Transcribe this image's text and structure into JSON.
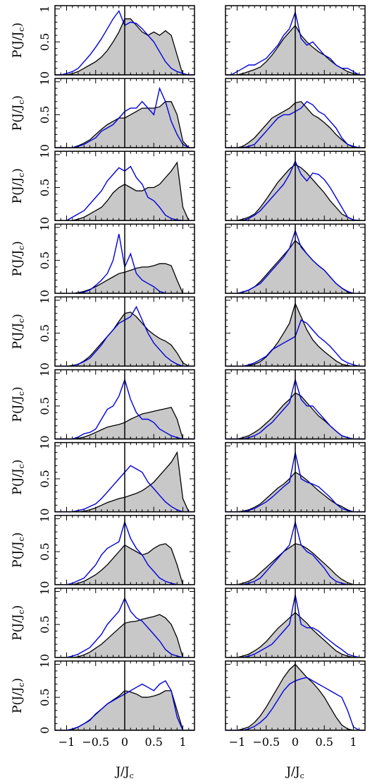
{
  "figure": {
    "ylabel_main": "P(J/J",
    "ylabel_sub": "c",
    "ylabel_close": ")",
    "xlabel_main": "J/J",
    "xlabel_sub": "c"
  },
  "chart_data": {
    "type": "area",
    "layout": "10 rows x 2 columns of small-multiple histograms",
    "grid": false,
    "xlim": [
      -1.2,
      1.2
    ],
    "ylim": [
      0,
      1.05
    ],
    "x_ticks": [
      -1,
      -0.5,
      0,
      0.5,
      1
    ],
    "x_tick_labels": [
      "−1",
      "−0.5",
      "0",
      "0.5",
      "1"
    ],
    "y_ticks": [
      0,
      0.5,
      1
    ],
    "y_tick_labels": [
      "0",
      "0.5",
      "1"
    ],
    "vertical_reference_line_x": 0,
    "series_styles": {
      "filled": {
        "fill": "#c8c8c8",
        "stroke": "#000000"
      },
      "line": {
        "stroke": "#0000dd"
      }
    },
    "x_sample": [
      -1.2,
      -1.1,
      -1.0,
      -0.9,
      -0.8,
      -0.7,
      -0.6,
      -0.5,
      -0.4,
      -0.3,
      -0.2,
      -0.1,
      0.0,
      0.1,
      0.2,
      0.3,
      0.4,
      0.5,
      0.6,
      0.7,
      0.8,
      0.9,
      1.0,
      1.1,
      1.2
    ],
    "panels": [
      {
        "row": 1,
        "col": 1,
        "filled": [
          0,
          0,
          0,
          0.02,
          0.05,
          0.1,
          0.15,
          0.2,
          0.27,
          0.37,
          0.5,
          0.65,
          0.85,
          0.85,
          0.75,
          0.65,
          0.6,
          0.65,
          0.6,
          0.67,
          0.6,
          0.3,
          0,
          0,
          0
        ],
        "line": [
          0,
          0,
          0.02,
          0.05,
          0.1,
          0.2,
          0.3,
          0.42,
          0.55,
          0.7,
          0.85,
          0.97,
          0.75,
          0.8,
          0.78,
          0.7,
          0.6,
          0.5,
          0.35,
          0.2,
          0.1,
          0.05,
          0.02,
          0,
          0
        ]
      },
      {
        "row": 1,
        "col": 2,
        "filled": [
          0,
          0,
          0,
          0.02,
          0.05,
          0.08,
          0.12,
          0.2,
          0.3,
          0.42,
          0.55,
          0.65,
          0.75,
          0.6,
          0.5,
          0.42,
          0.35,
          0.3,
          0.22,
          0.15,
          0.1,
          0.05,
          0.02,
          0,
          0
        ],
        "line": [
          0,
          0,
          0.05,
          0.1,
          0.15,
          0.15,
          0.2,
          0.25,
          0.35,
          0.45,
          0.6,
          0.7,
          0.95,
          0.55,
          0.45,
          0.5,
          0.4,
          0.3,
          0.25,
          0.15,
          0.1,
          0.1,
          0.05,
          0,
          0
        ]
      },
      {
        "row": 2,
        "col": 1,
        "filled": [
          0,
          0,
          0,
          0,
          0.03,
          0.07,
          0.12,
          0.2,
          0.28,
          0.35,
          0.4,
          0.45,
          0.45,
          0.5,
          0.55,
          0.6,
          0.6,
          0.6,
          0.62,
          0.7,
          0.7,
          0.5,
          0.1,
          0,
          0
        ],
        "line": [
          0,
          0,
          0,
          0,
          0.02,
          0.05,
          0.1,
          0.15,
          0.25,
          0.3,
          0.35,
          0.45,
          0.55,
          0.6,
          0.6,
          0.7,
          0.6,
          0.5,
          0.9,
          0.7,
          0.4,
          0.2,
          0.05,
          0,
          0
        ]
      },
      {
        "row": 2,
        "col": 2,
        "filled": [
          0,
          0,
          0,
          0.02,
          0.08,
          0.15,
          0.25,
          0.35,
          0.45,
          0.5,
          0.55,
          0.6,
          0.68,
          0.7,
          0.6,
          0.5,
          0.45,
          0.38,
          0.3,
          0.2,
          0.12,
          0.05,
          0.01,
          0,
          0
        ],
        "line": [
          0,
          0,
          0,
          0,
          0.02,
          0.05,
          0.15,
          0.25,
          0.35,
          0.45,
          0.5,
          0.5,
          0.55,
          0.6,
          0.7,
          0.65,
          0.55,
          0.5,
          0.4,
          0.3,
          0.15,
          0.05,
          0.02,
          0,
          0
        ]
      },
      {
        "row": 3,
        "col": 1,
        "filled": [
          0,
          0,
          0,
          0,
          0.02,
          0.05,
          0.1,
          0.15,
          0.2,
          0.3,
          0.42,
          0.5,
          0.55,
          0.5,
          0.45,
          0.45,
          0.5,
          0.5,
          0.55,
          0.65,
          0.75,
          0.88,
          0.2,
          0,
          0
        ],
        "line": [
          0,
          0,
          0,
          0.05,
          0.1,
          0.15,
          0.25,
          0.35,
          0.45,
          0.6,
          0.7,
          0.8,
          0.75,
          0.82,
          0.65,
          0.55,
          0.35,
          0.3,
          0.2,
          0.08,
          0.03,
          0.01,
          0,
          0,
          0
        ]
      },
      {
        "row": 3,
        "col": 2,
        "filled": [
          0,
          0,
          0,
          0.02,
          0.05,
          0.1,
          0.2,
          0.32,
          0.45,
          0.58,
          0.68,
          0.78,
          0.85,
          0.8,
          0.72,
          0.62,
          0.52,
          0.42,
          0.3,
          0.2,
          0.1,
          0.05,
          0.01,
          0,
          0
        ],
        "line": [
          0,
          0,
          0,
          0,
          0.03,
          0.08,
          0.15,
          0.25,
          0.35,
          0.45,
          0.55,
          0.7,
          0.9,
          0.7,
          0.6,
          0.72,
          0.7,
          0.62,
          0.5,
          0.35,
          0.2,
          0.05,
          0.01,
          0,
          0
        ]
      },
      {
        "row": 4,
        "col": 1,
        "filled": [
          0,
          0,
          0,
          0,
          0.01,
          0.03,
          0.06,
          0.1,
          0.15,
          0.2,
          0.25,
          0.3,
          0.32,
          0.35,
          0.38,
          0.4,
          0.4,
          0.42,
          0.45,
          0.45,
          0.42,
          0.2,
          0,
          0,
          0
        ],
        "line": [
          0,
          0,
          0,
          0,
          0,
          0.02,
          0.05,
          0.12,
          0.2,
          0.3,
          0.5,
          0.9,
          0.4,
          0.6,
          0.3,
          0.2,
          0.15,
          0.1,
          0.03,
          0,
          0,
          0,
          0,
          0,
          0
        ]
      },
      {
        "row": 4,
        "col": 2,
        "filled": [
          0,
          0,
          0,
          0.02,
          0.05,
          0.1,
          0.18,
          0.28,
          0.38,
          0.48,
          0.58,
          0.68,
          0.8,
          0.72,
          0.6,
          0.5,
          0.42,
          0.35,
          0.25,
          0.15,
          0.08,
          0.02,
          0,
          0,
          0
        ],
        "line": [
          0,
          0,
          0,
          0.02,
          0.05,
          0.1,
          0.15,
          0.25,
          0.35,
          0.45,
          0.55,
          0.68,
          0.95,
          0.7,
          0.6,
          0.5,
          0.42,
          0.35,
          0.25,
          0.15,
          0.08,
          0.03,
          0,
          0,
          0
        ]
      },
      {
        "row": 5,
        "col": 1,
        "filled": [
          0,
          0,
          0,
          0.01,
          0.03,
          0.08,
          0.15,
          0.25,
          0.35,
          0.45,
          0.55,
          0.68,
          0.8,
          0.82,
          0.75,
          0.65,
          0.55,
          0.48,
          0.42,
          0.38,
          0.32,
          0.2,
          0.05,
          0,
          0
        ],
        "line": [
          0,
          0,
          0,
          0,
          0.03,
          0.07,
          0.12,
          0.22,
          0.32,
          0.45,
          0.55,
          0.65,
          0.7,
          0.75,
          0.9,
          0.7,
          0.5,
          0.35,
          0.25,
          0.15,
          0.08,
          0.03,
          0,
          0,
          0
        ]
      },
      {
        "row": 5,
        "col": 2,
        "filled": [
          0,
          0,
          0,
          0,
          0.01,
          0.03,
          0.07,
          0.14,
          0.24,
          0.36,
          0.5,
          0.65,
          0.95,
          0.75,
          0.55,
          0.4,
          0.3,
          0.22,
          0.15,
          0.08,
          0.03,
          0.01,
          0,
          0,
          0
        ],
        "line": [
          0,
          0,
          0,
          0,
          0.02,
          0.05,
          0.1,
          0.15,
          0.25,
          0.3,
          0.35,
          0.4,
          0.45,
          0.7,
          0.65,
          0.55,
          0.45,
          0.38,
          0.3,
          0.2,
          0.1,
          0.05,
          0.02,
          0,
          0
        ]
      },
      {
        "row": 6,
        "col": 1,
        "filled": [
          0,
          0,
          0,
          0,
          0.01,
          0.03,
          0.06,
          0.1,
          0.14,
          0.18,
          0.2,
          0.22,
          0.25,
          0.3,
          0.34,
          0.38,
          0.4,
          0.42,
          0.44,
          0.46,
          0.48,
          0.3,
          0,
          0,
          0
        ],
        "line": [
          0,
          0,
          0,
          0,
          0.03,
          0.08,
          0.1,
          0.15,
          0.3,
          0.45,
          0.5,
          0.65,
          0.9,
          0.6,
          0.4,
          0.3,
          0.3,
          0.25,
          0.15,
          0.1,
          0.05,
          0.02,
          0,
          0,
          0
        ]
      },
      {
        "row": 6,
        "col": 2,
        "filled": [
          0,
          0,
          0,
          0.02,
          0.05,
          0.1,
          0.16,
          0.24,
          0.32,
          0.42,
          0.52,
          0.6,
          0.7,
          0.65,
          0.55,
          0.45,
          0.35,
          0.28,
          0.2,
          0.12,
          0.05,
          0.02,
          0,
          0,
          0
        ],
        "line": [
          0,
          0,
          0,
          0,
          0.02,
          0.05,
          0.1,
          0.18,
          0.25,
          0.35,
          0.45,
          0.55,
          0.9,
          0.6,
          0.5,
          0.5,
          0.4,
          0.3,
          0.2,
          0.12,
          0.05,
          0.02,
          0,
          0,
          0
        ]
      },
      {
        "row": 7,
        "col": 1,
        "filled": [
          0,
          0,
          0,
          0,
          0,
          0.01,
          0.03,
          0.06,
          0.1,
          0.14,
          0.17,
          0.2,
          0.22,
          0.25,
          0.28,
          0.32,
          0.38,
          0.45,
          0.55,
          0.65,
          0.75,
          0.9,
          0.2,
          0,
          0
        ],
        "line": [
          0,
          0,
          0,
          0,
          0.02,
          0.04,
          0.08,
          0.12,
          0.2,
          0.3,
          0.4,
          0.5,
          0.6,
          0.7,
          0.65,
          0.6,
          0.45,
          0.35,
          0.25,
          0.15,
          0.08,
          0.03,
          0,
          0,
          0
        ]
      },
      {
        "row": 7,
        "col": 2,
        "filled": [
          0,
          0,
          0,
          0.01,
          0.03,
          0.07,
          0.12,
          0.2,
          0.28,
          0.36,
          0.42,
          0.5,
          0.6,
          0.55,
          0.48,
          0.4,
          0.32,
          0.25,
          0.18,
          0.12,
          0.08,
          0.03,
          0,
          0,
          0
        ],
        "line": [
          0,
          0,
          0,
          0,
          0.02,
          0.05,
          0.1,
          0.15,
          0.22,
          0.3,
          0.38,
          0.45,
          0.9,
          0.5,
          0.45,
          0.42,
          0.38,
          0.3,
          0.22,
          0.12,
          0.05,
          0.02,
          0,
          0,
          0
        ]
      },
      {
        "row": 8,
        "col": 1,
        "filled": [
          0,
          0,
          0,
          0,
          0.02,
          0.05,
          0.1,
          0.15,
          0.22,
          0.3,
          0.4,
          0.5,
          0.6,
          0.55,
          0.5,
          0.45,
          0.48,
          0.55,
          0.6,
          0.62,
          0.55,
          0.3,
          0,
          0,
          0
        ],
        "line": [
          0,
          0,
          0,
          0.02,
          0.06,
          0.1,
          0.2,
          0.3,
          0.45,
          0.55,
          0.6,
          0.65,
          0.95,
          0.7,
          0.55,
          0.45,
          0.3,
          0.2,
          0.1,
          0.05,
          0.02,
          0,
          0,
          0,
          0
        ]
      },
      {
        "row": 8,
        "col": 2,
        "filled": [
          0,
          0,
          0,
          0.02,
          0.05,
          0.1,
          0.18,
          0.26,
          0.34,
          0.42,
          0.5,
          0.56,
          0.62,
          0.6,
          0.55,
          0.48,
          0.4,
          0.32,
          0.24,
          0.15,
          0.08,
          0.03,
          0,
          0,
          0
        ],
        "line": [
          0,
          0,
          0,
          0,
          0.02,
          0.05,
          0.1,
          0.2,
          0.3,
          0.4,
          0.5,
          0.6,
          0.95,
          0.6,
          0.5,
          0.45,
          0.35,
          0.25,
          0.12,
          0.05,
          0.02,
          0,
          0,
          0,
          0
        ]
      },
      {
        "row": 9,
        "col": 1,
        "filled": [
          0,
          0,
          0,
          0,
          0.01,
          0.04,
          0.08,
          0.14,
          0.2,
          0.28,
          0.36,
          0.44,
          0.52,
          0.54,
          0.55,
          0.58,
          0.6,
          0.62,
          0.65,
          0.6,
          0.5,
          0.3,
          0,
          0,
          0
        ],
        "line": [
          0,
          0,
          0,
          0.02,
          0.05,
          0.1,
          0.15,
          0.25,
          0.35,
          0.5,
          0.6,
          0.7,
          0.9,
          0.7,
          0.6,
          0.55,
          0.45,
          0.35,
          0.25,
          0.12,
          0.05,
          0.02,
          0,
          0,
          0
        ]
      },
      {
        "row": 9,
        "col": 2,
        "filled": [
          0,
          0,
          0,
          0.02,
          0.05,
          0.1,
          0.16,
          0.24,
          0.34,
          0.44,
          0.52,
          0.6,
          0.68,
          0.6,
          0.52,
          0.42,
          0.34,
          0.26,
          0.18,
          0.1,
          0.05,
          0.02,
          0,
          0,
          0
        ],
        "line": [
          0,
          0,
          0,
          0,
          0.02,
          0.05,
          0.1,
          0.15,
          0.2,
          0.3,
          0.4,
          0.5,
          0.95,
          0.5,
          0.45,
          0.45,
          0.4,
          0.32,
          0.25,
          0.18,
          0.12,
          0.05,
          0.02,
          0,
          0
        ]
      },
      {
        "row": 10,
        "col": 1,
        "filled": [
          0,
          0,
          0,
          0.01,
          0.05,
          0.1,
          0.16,
          0.24,
          0.32,
          0.4,
          0.46,
          0.52,
          0.6,
          0.58,
          0.55,
          0.5,
          0.5,
          0.52,
          0.55,
          0.6,
          0.6,
          0.3,
          0,
          0,
          0
        ],
        "line": [
          0,
          0,
          0,
          0.02,
          0.05,
          0.1,
          0.15,
          0.25,
          0.32,
          0.4,
          0.45,
          0.5,
          0.55,
          0.6,
          0.65,
          0.7,
          0.65,
          0.6,
          0.7,
          0.75,
          0.6,
          0.2,
          0,
          0,
          0
        ]
      },
      {
        "row": 10,
        "col": 2,
        "filled": [
          0,
          0,
          0,
          0.02,
          0.05,
          0.12,
          0.22,
          0.35,
          0.5,
          0.65,
          0.8,
          0.92,
          1.0,
          0.9,
          0.8,
          0.72,
          0.62,
          0.5,
          0.35,
          0.2,
          0.08,
          0.02,
          0,
          0,
          0
        ],
        "line": [
          0,
          0,
          0,
          0,
          0.02,
          0.06,
          0.12,
          0.2,
          0.32,
          0.46,
          0.6,
          0.7,
          0.75,
          0.78,
          0.8,
          0.75,
          0.7,
          0.65,
          0.6,
          0.55,
          0.5,
          0.3,
          0.05,
          0,
          0
        ]
      }
    ]
  }
}
